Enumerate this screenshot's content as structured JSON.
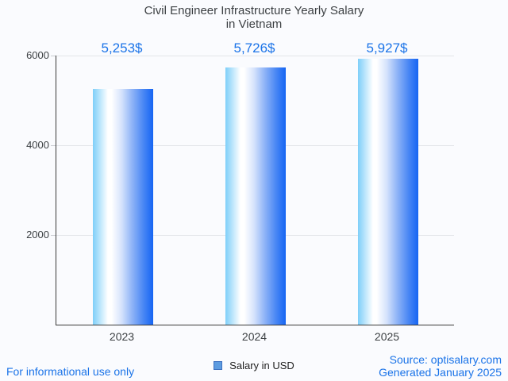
{
  "title": {
    "line1": "Civil Engineer Infrastructure Yearly Salary",
    "line2": "in Vietnam"
  },
  "chart_data": {
    "type": "bar",
    "title": "Civil Engineer Infrastructure Yearly Salary in Vietnam",
    "categories": [
      "2023",
      "2024",
      "2025"
    ],
    "values": [
      5253,
      5726,
      5927
    ],
    "value_labels": [
      "5,253$",
      "5,726$",
      "5,927$"
    ],
    "series_name": "Salary in USD",
    "xlabel": "",
    "ylabel": "",
    "ylim": [
      0,
      6000
    ],
    "yticks": [
      2000,
      4000,
      6000
    ],
    "grid": true,
    "legend_position": "bottom"
  },
  "legend": {
    "label": "Salary in USD"
  },
  "footer": {
    "disclaimer": "For informational use only",
    "source": "Source: optisalary.com",
    "generated": "Generated January 2025"
  },
  "colors": {
    "accent_blue": "#1a73e8",
    "bar_edge_blue": "#1565f3",
    "bar_light_blue": "#7ecff9",
    "legend_fill": "#5c9be0",
    "legend_border": "#3b6fc0",
    "background": "#fafbfe"
  }
}
